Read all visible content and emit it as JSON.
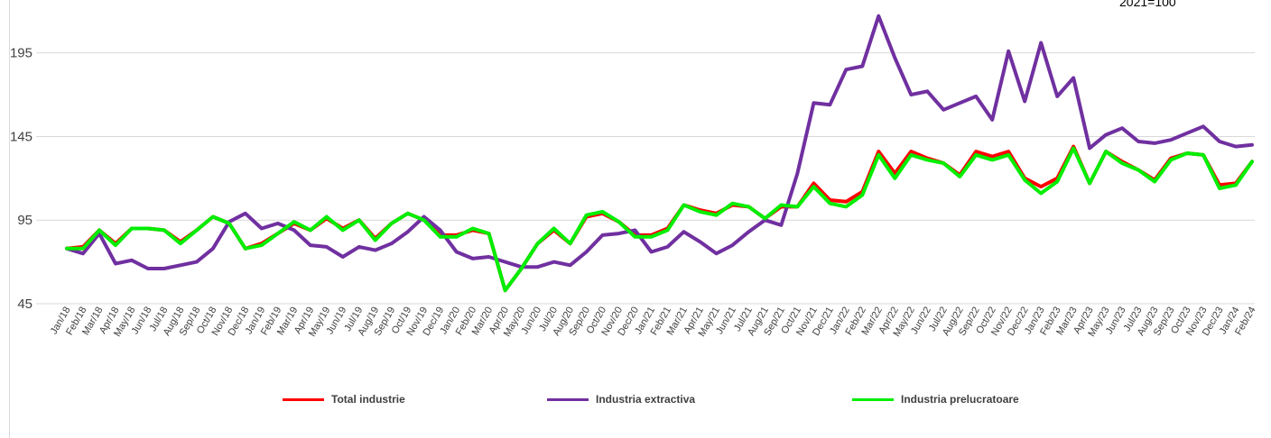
{
  "corner_label": "2021=100",
  "chart_data": {
    "type": "line",
    "ylim": [
      45,
      225
    ],
    "yticks": [
      45,
      95,
      145,
      195
    ],
    "grid": "horizontal",
    "legend_position": "bottom",
    "categories": [
      "Jan/18",
      "Feb/18",
      "Mar/18",
      "Apr/18",
      "May/18",
      "Jun/18",
      "Jul/18",
      "Aug/18",
      "Sep/18",
      "Oct/18",
      "Nov/18",
      "Dec/18",
      "Jan/19",
      "Feb/19",
      "Mar/19",
      "Apr/19",
      "May/19",
      "Jun/19",
      "Jul/19",
      "Aug/19",
      "Sep/19",
      "Oct/19",
      "Nov/19",
      "Dec/19",
      "Jan/20",
      "Feb/20",
      "Mar/20",
      "Apr/20",
      "May/20",
      "Jun/20",
      "Jul/20",
      "Aug/20",
      "Sep/20",
      "Oct/20",
      "Nov/20",
      "Dec/20",
      "Jan/21",
      "Feb/21",
      "Mar/21",
      "Apr/21",
      "May/21",
      "Jun/21",
      "Jul/21",
      "Aug/21",
      "Sep/21",
      "Oct/21",
      "Nov/21",
      "Dec/21",
      "Jan/22",
      "Feb/22",
      "Mar/22",
      "Apr/22",
      "May/22",
      "Jun/22",
      "Jul/22",
      "Aug/22",
      "Sep/22",
      "Oct/22",
      "Nov/22",
      "Dec/22",
      "Jan/23",
      "Feb/23",
      "Mar/23",
      "Apr/23",
      "May/23",
      "Jun/23",
      "Jul/23",
      "Aug/23",
      "Sep/23",
      "Oct/23",
      "Nov/23",
      "Dec/23",
      "Jan/24",
      "Feb/24"
    ],
    "series": [
      {
        "name": "Total industrie",
        "color": "#ff0000",
        "values": [
          78,
          79,
          89,
          81,
          90,
          90,
          89,
          82,
          89,
          97,
          93,
          78,
          81,
          87,
          93,
          89,
          96,
          90,
          95,
          84,
          93,
          99,
          95,
          86,
          86,
          89,
          87,
          53,
          66,
          81,
          89,
          81,
          97,
          99,
          94,
          86,
          86,
          90,
          104,
          101,
          99,
          104,
          103,
          96,
          103,
          103,
          117,
          107,
          106,
          112,
          136,
          123,
          136,
          132,
          129,
          122,
          136,
          133,
          136,
          120,
          115,
          120,
          139,
          117,
          136,
          130,
          125,
          119,
          132,
          135,
          134,
          116,
          117,
          130
        ]
      },
      {
        "name": "Industria extractiva",
        "color": "#7030a0",
        "values": [
          78,
          75,
          87,
          69,
          71,
          66,
          66,
          68,
          70,
          78,
          94,
          99,
          90,
          93,
          89,
          80,
          79,
          73,
          79,
          77,
          81,
          88,
          97,
          89,
          76,
          72,
          73,
          70,
          67,
          67,
          70,
          68,
          76,
          86,
          87,
          89,
          76,
          79,
          88,
          82,
          75,
          80,
          88,
          95,
          92,
          123,
          165,
          164,
          185,
          187,
          217,
          192,
          170,
          172,
          161,
          165,
          169,
          155,
          196,
          166,
          201,
          169,
          180,
          138,
          146,
          150,
          142,
          141,
          143,
          147,
          151,
          142,
          139,
          140
        ]
      },
      {
        "name": "Industria prelucratoare",
        "color": "#00ee00",
        "values": [
          78,
          78,
          89,
          80,
          90,
          90,
          89,
          81,
          89,
          97,
          93,
          78,
          80,
          87,
          94,
          89,
          97,
          89,
          95,
          83,
          93,
          99,
          95,
          85,
          85,
          90,
          87,
          53,
          66,
          81,
          90,
          81,
          98,
          100,
          94,
          85,
          85,
          89,
          104,
          100,
          98,
          105,
          103,
          96,
          104,
          103,
          115,
          105,
          103,
          110,
          134,
          120,
          134,
          131,
          129,
          121,
          134,
          131,
          134,
          119,
          111,
          118,
          138,
          117,
          136,
          129,
          125,
          118,
          131,
          135,
          134,
          114,
          116,
          130
        ]
      }
    ]
  }
}
